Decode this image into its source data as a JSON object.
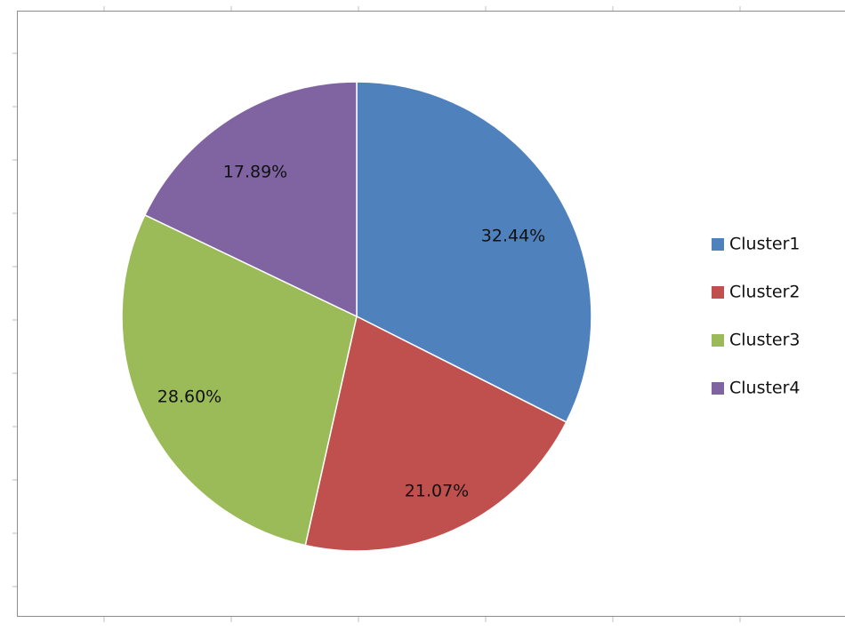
{
  "chart_data": {
    "type": "pie",
    "title": "",
    "categories": [
      "Cluster1",
      "Cluster2",
      "Cluster3",
      "Cluster4"
    ],
    "values": [
      32.44,
      21.07,
      28.6,
      17.89
    ],
    "labels": [
      "32.44%",
      "21.07%",
      "28.60%",
      "17.89%"
    ],
    "colors": [
      "#4f81bd",
      "#c0504d",
      "#9bbb59",
      "#8064a2"
    ],
    "legend_position": "right"
  }
}
